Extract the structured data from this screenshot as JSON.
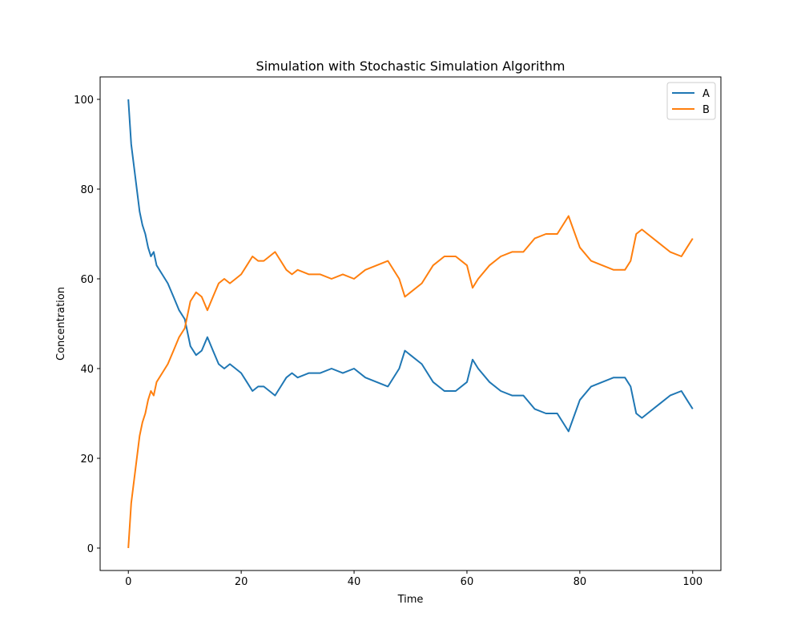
{
  "chart_data": {
    "type": "line",
    "title": "Simulation with Stochastic Simulation Algorithm",
    "xlabel": "Time",
    "ylabel": "Concentration",
    "xlim": [
      -5,
      105
    ],
    "ylim": [
      -5,
      105
    ],
    "xticks": [
      0,
      20,
      40,
      60,
      80,
      100
    ],
    "yticks": [
      0,
      20,
      40,
      60,
      80,
      100
    ],
    "grid": false,
    "legend_position": "top-right",
    "series": [
      {
        "name": "A",
        "color": "#1f77b4",
        "x": [
          0,
          0.5,
          1,
          1.5,
          2,
          2.5,
          3,
          3.5,
          4,
          4.5,
          5,
          6,
          7,
          8,
          9,
          10,
          11,
          12,
          13,
          14,
          15,
          16,
          17,
          18,
          19,
          20,
          21,
          22,
          23,
          24,
          25,
          26,
          27,
          28,
          29,
          30,
          32,
          34,
          36,
          38,
          40,
          42,
          44,
          46,
          48,
          49,
          50,
          52,
          54,
          56,
          58,
          60,
          61,
          62,
          64,
          66,
          68,
          70,
          72,
          74,
          76,
          78,
          80,
          82,
          84,
          86,
          88,
          89,
          90,
          91,
          92,
          94,
          96,
          98,
          99,
          100
        ],
        "values": [
          100,
          90,
          85,
          80,
          75,
          72,
          70,
          67,
          65,
          66,
          63,
          61,
          59,
          56,
          53,
          51,
          45,
          43,
          44,
          47,
          44,
          41,
          40,
          41,
          40,
          39,
          37,
          35,
          36,
          36,
          35,
          34,
          36,
          38,
          39,
          38,
          39,
          39,
          40,
          39,
          40,
          38,
          37,
          36,
          40,
          44,
          43,
          41,
          37,
          35,
          35,
          37,
          42,
          40,
          37,
          35,
          34,
          34,
          31,
          30,
          30,
          26,
          33,
          36,
          37,
          38,
          38,
          36,
          30,
          29,
          30,
          32,
          34,
          35,
          33,
          31
        ]
      },
      {
        "name": "B",
        "color": "#ff7f0e",
        "x": [
          0,
          0.5,
          1,
          1.5,
          2,
          2.5,
          3,
          3.5,
          4,
          4.5,
          5,
          6,
          7,
          8,
          9,
          10,
          11,
          12,
          13,
          14,
          15,
          16,
          17,
          18,
          19,
          20,
          21,
          22,
          23,
          24,
          25,
          26,
          27,
          28,
          29,
          30,
          32,
          34,
          36,
          38,
          40,
          42,
          44,
          46,
          48,
          49,
          50,
          52,
          54,
          56,
          58,
          60,
          61,
          62,
          64,
          66,
          68,
          70,
          72,
          74,
          76,
          78,
          80,
          82,
          84,
          86,
          88,
          89,
          90,
          91,
          92,
          94,
          96,
          98,
          99,
          100
        ],
        "values": [
          0,
          10,
          15,
          20,
          25,
          28,
          30,
          33,
          35,
          34,
          37,
          39,
          41,
          44,
          47,
          49,
          55,
          57,
          56,
          53,
          56,
          59,
          60,
          59,
          60,
          61,
          63,
          65,
          64,
          64,
          65,
          66,
          64,
          62,
          61,
          62,
          61,
          61,
          60,
          61,
          60,
          62,
          63,
          64,
          60,
          56,
          57,
          59,
          63,
          65,
          65,
          63,
          58,
          60,
          63,
          65,
          66,
          66,
          69,
          70,
          70,
          74,
          67,
          64,
          63,
          62,
          62,
          64,
          70,
          71,
          70,
          68,
          66,
          65,
          67,
          69
        ]
      }
    ]
  }
}
